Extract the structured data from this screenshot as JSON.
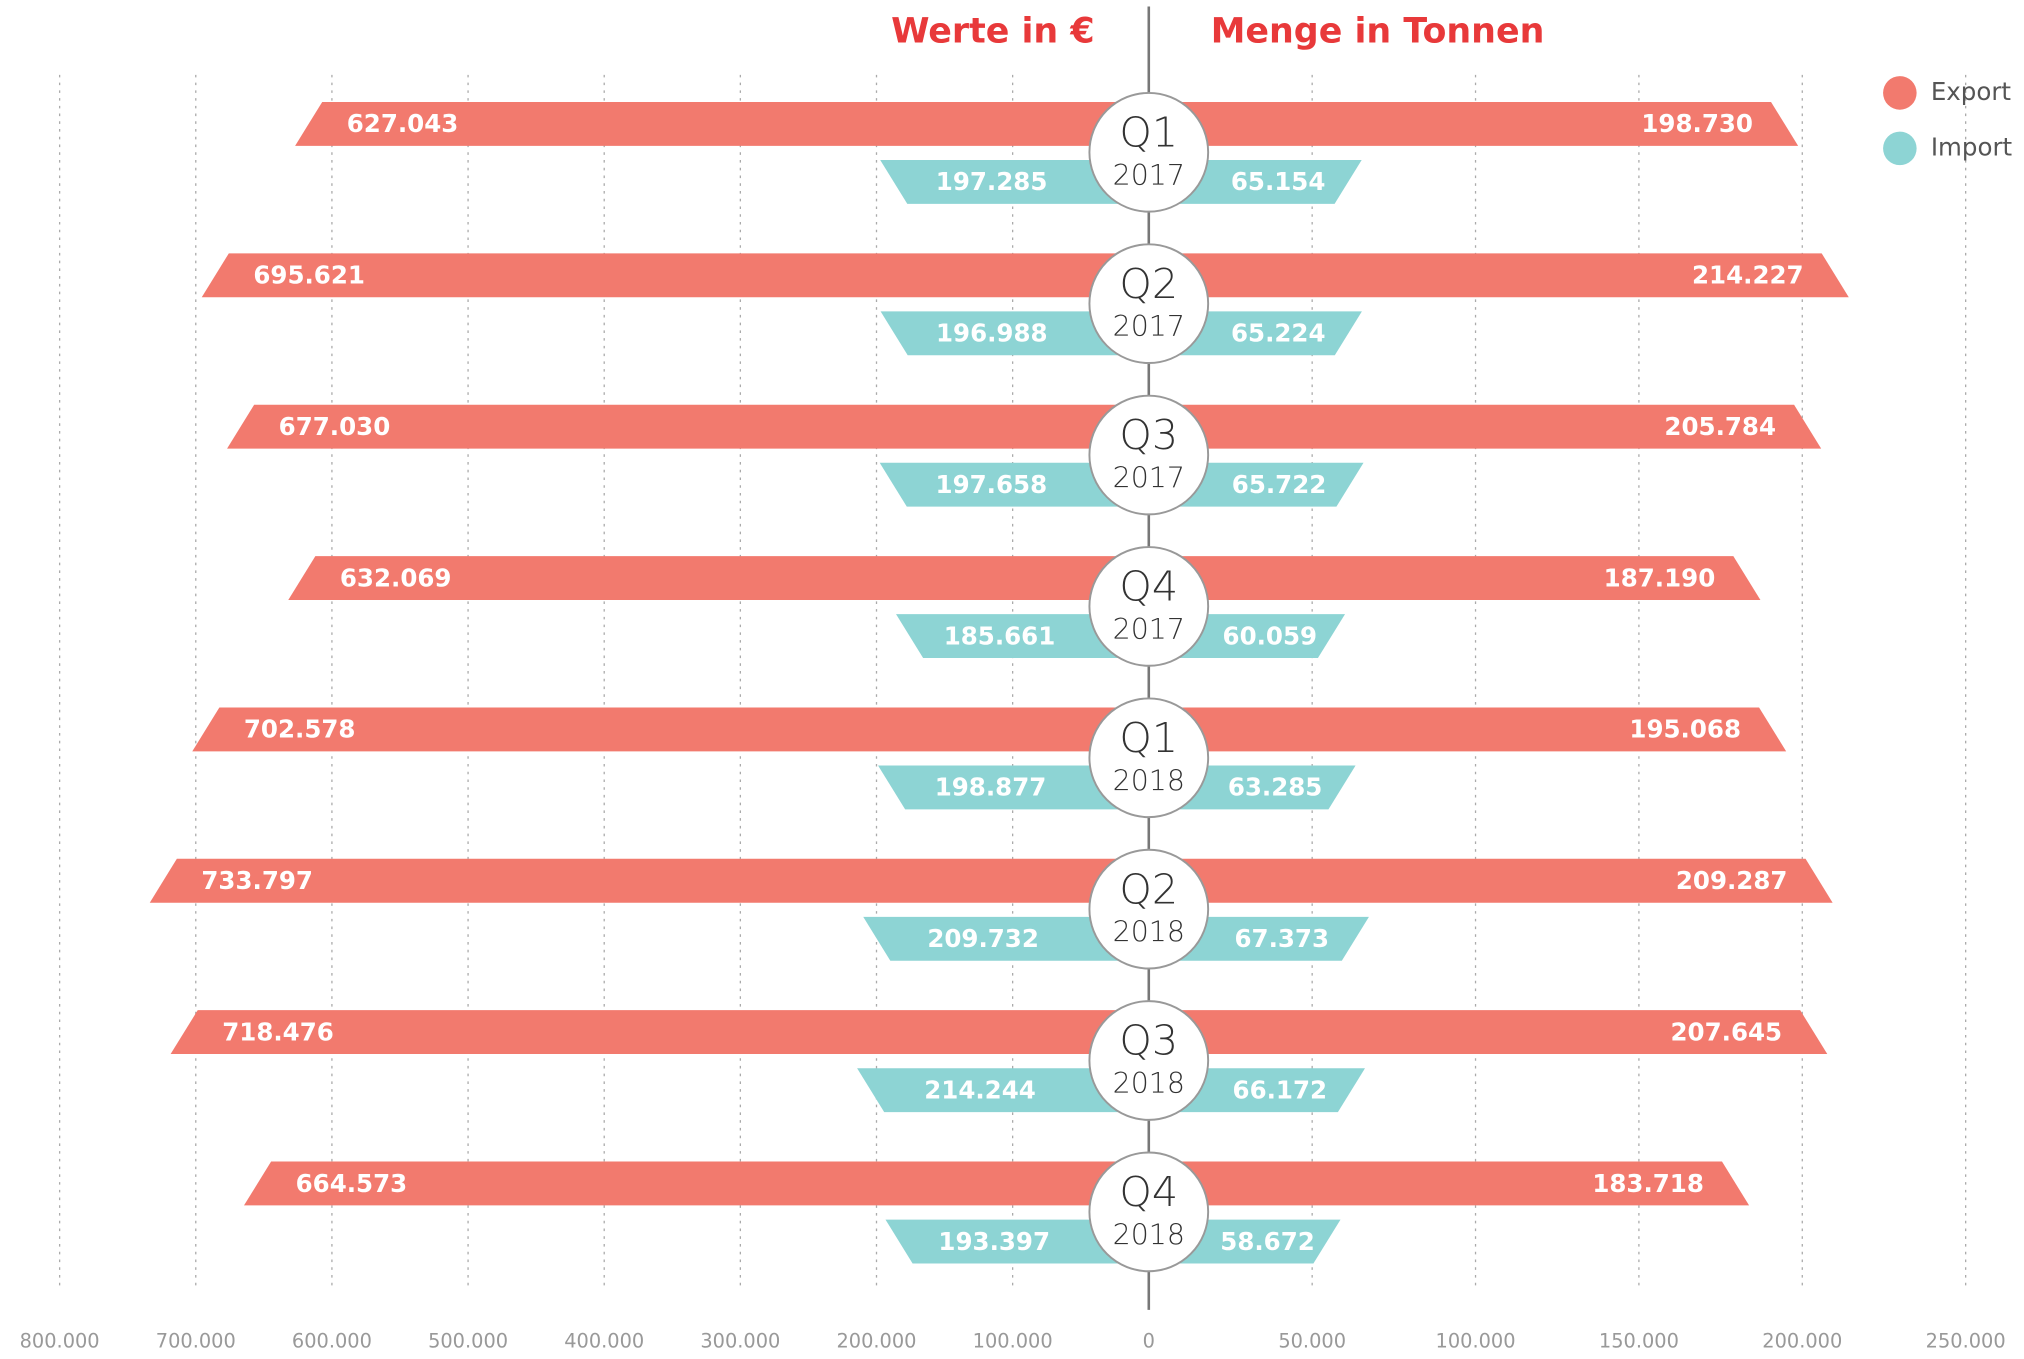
{
  "chart_data": {
    "type": "butterfly",
    "title_left": "Werte in €",
    "title_right": "Menge in Tonnen",
    "categories": [
      [
        "Q1",
        "2017"
      ],
      [
        "Q2",
        "2017"
      ],
      [
        "Q3",
        "2017"
      ],
      [
        "Q4",
        "2017"
      ],
      [
        "Q1",
        "2018"
      ],
      [
        "Q2",
        "2018"
      ],
      [
        "Q3",
        "2018"
      ],
      [
        "Q4",
        "2018"
      ]
    ],
    "series": [
      {
        "name": "Export",
        "color": "#f27a6e",
        "values": [
          627043,
          695621,
          677030,
          632069,
          702578,
          733797,
          718476,
          664573
        ],
        "value_labels": [
          "627.043",
          "695.621",
          "677.030",
          "632.069",
          "702.578",
          "733.797",
          "718.476",
          "664.573"
        ],
        "quantities": [
          198730,
          214227,
          205784,
          187190,
          195068,
          209287,
          207645,
          183718
        ],
        "quantity_labels": [
          "198.730",
          "214.227",
          "205.784",
          "187.190",
          "195.068",
          "209.287",
          "207.645",
          "183.718"
        ]
      },
      {
        "name": "Import",
        "color": "#8dd4d4",
        "values": [
          197285,
          196988,
          197658,
          185661,
          198877,
          209732,
          214244,
          193397
        ],
        "value_labels": [
          "197.285",
          "196.988",
          "197.658",
          "185.661",
          "198.877",
          "209.732",
          "214.244",
          "193.397"
        ],
        "quantities": [
          65154,
          65224,
          65722,
          60059,
          63285,
          67373,
          66172,
          58672
        ],
        "quantity_labels": [
          "65.154",
          "65.224",
          "65.722",
          "60.059",
          "63.285",
          "67.373",
          "66.172",
          "58.672"
        ]
      }
    ],
    "xlim": [
      0,
      800000
    ],
    "xticks": [
      0,
      {
        "value": 100000,
        "label": "100.000"
      },
      {
        "value": 200000,
        "label": "200.000"
      },
      {
        "value": 300000,
        "label": "300.000"
      },
      {
        "value": 400000,
        "label": "400.000"
      },
      {
        "value": 500000,
        "label": "500.000"
      },
      {
        "value": 600000,
        "label": "600.000"
      },
      {
        "value": 700000,
        "label": "700.000"
      },
      {
        "value": 800000,
        "label": "800.000"
      }
    ],
    "x2lim": [
      0,
      250000
    ],
    "x2ticks": [
      {
        "value": 50000,
        "label": "50.000"
      },
      {
        "value": 100000,
        "label": "100.000"
      },
      {
        "value": 150000,
        "label": "150.000"
      },
      {
        "value": 200000,
        "label": "200.000"
      },
      {
        "value": 250000,
        "label": "250.000"
      }
    ],
    "grid": true,
    "legend": "top-right"
  }
}
